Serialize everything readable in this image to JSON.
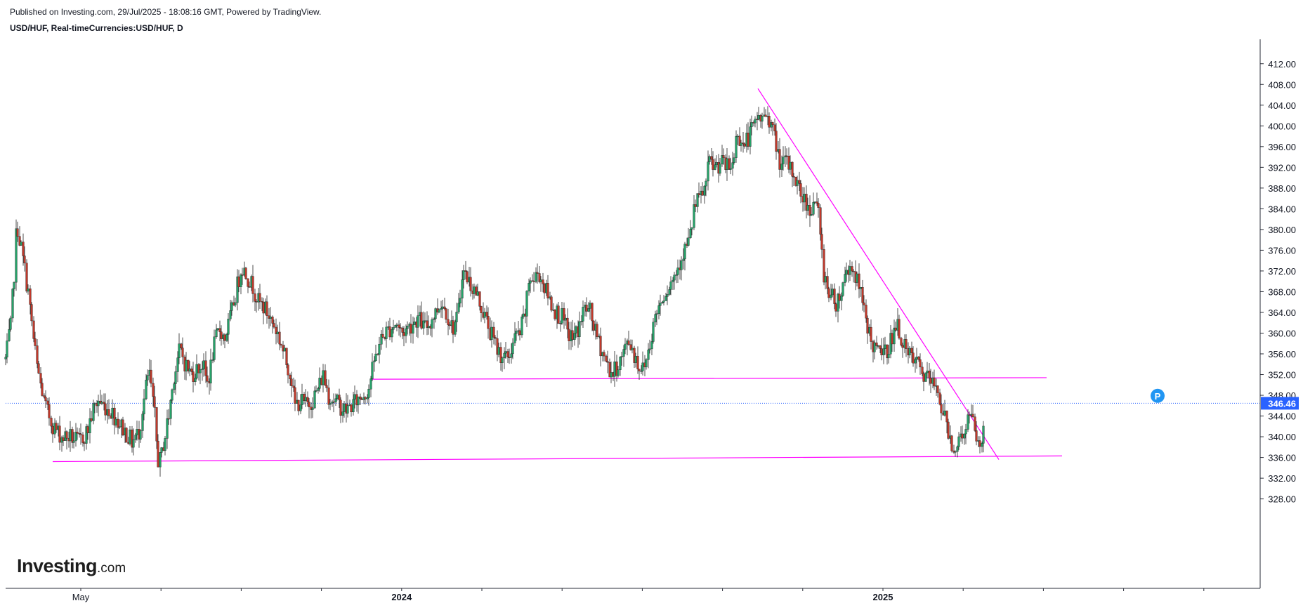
{
  "header": {
    "published": "Published on Investing.com, 29/Jul/2025 - 18:08:16 GMT, Powered by TradingView.",
    "symbol": "USD/HUF, Real-timeCurrencies:USD/HUF, D"
  },
  "logo": {
    "brand": "Investing",
    "suffix": ".com"
  },
  "colors": {
    "up": "#26a269",
    "down": "#c0392b",
    "trendline": "#ff00ff",
    "price_line": "#2962ff",
    "price_badge": "#2962ff",
    "marker": "#2196f3"
  },
  "chart_data": {
    "type": "candlestick",
    "symbol": "USD/HUF",
    "interval": "D",
    "ylim": [
      326,
      414
    ],
    "y_ticks": [
      "328.00",
      "332.00",
      "336.00",
      "340.00",
      "344.00",
      "348.00",
      "352.00",
      "356.00",
      "360.00",
      "364.00",
      "368.00",
      "372.00",
      "376.00",
      "380.00",
      "384.00",
      "388.00",
      "392.00",
      "396.00",
      "400.00",
      "404.00",
      "408.00",
      "412.00"
    ],
    "x_ticks": [
      {
        "label": "May",
        "bold": false
      },
      {
        "label": "",
        "bold": false
      },
      {
        "label": "",
        "bold": false
      },
      {
        "label": "",
        "bold": false
      },
      {
        "label": "2024",
        "bold": true
      },
      {
        "label": "",
        "bold": false
      },
      {
        "label": "",
        "bold": false
      },
      {
        "label": "",
        "bold": false
      },
      {
        "label": "",
        "bold": false
      },
      {
        "label": "",
        "bold": false
      },
      {
        "label": "2025",
        "bold": true
      },
      {
        "label": "",
        "bold": false
      },
      {
        "label": "",
        "bold": false
      },
      {
        "label": "",
        "bold": false
      },
      {
        "label": "",
        "bold": false
      }
    ],
    "close_path": [
      [
        0,
        355
      ],
      [
        8,
        362
      ],
      [
        16,
        381
      ],
      [
        24,
        375
      ],
      [
        32,
        368
      ],
      [
        44,
        354
      ],
      [
        56,
        346
      ],
      [
        68,
        342
      ],
      [
        80,
        340
      ],
      [
        92,
        340
      ],
      [
        104,
        339
      ],
      [
        116,
        341
      ],
      [
        124,
        345
      ],
      [
        132,
        347
      ],
      [
        140,
        346
      ],
      [
        150,
        345
      ],
      [
        160,
        343
      ],
      [
        170,
        341
      ],
      [
        180,
        339
      ],
      [
        190,
        341
      ],
      [
        198,
        348
      ],
      [
        204,
        353
      ],
      [
        212,
        344
      ],
      [
        218,
        334
      ],
      [
        224,
        338
      ],
      [
        232,
        344
      ],
      [
        240,
        352
      ],
      [
        248,
        357
      ],
      [
        256,
        354
      ],
      [
        264,
        352
      ],
      [
        272,
        353
      ],
      [
        280,
        354
      ],
      [
        288,
        350
      ],
      [
        296,
        357
      ],
      [
        304,
        361
      ],
      [
        312,
        359
      ],
      [
        320,
        363
      ],
      [
        328,
        368
      ],
      [
        336,
        373
      ],
      [
        344,
        371
      ],
      [
        352,
        369
      ],
      [
        360,
        366
      ],
      [
        368,
        365
      ],
      [
        376,
        363
      ],
      [
        384,
        361
      ],
      [
        392,
        358
      ],
      [
        398,
        355
      ],
      [
        406,
        352
      ],
      [
        412,
        346
      ],
      [
        420,
        347
      ],
      [
        428,
        346
      ],
      [
        436,
        347
      ],
      [
        444,
        349
      ],
      [
        452,
        352
      ],
      [
        460,
        348
      ],
      [
        468,
        347
      ],
      [
        476,
        346
      ],
      [
        484,
        345
      ],
      [
        492,
        346
      ],
      [
        500,
        347
      ],
      [
        508,
        348
      ],
      [
        516,
        349
      ],
      [
        524,
        354
      ],
      [
        532,
        358
      ],
      [
        540,
        360
      ],
      [
        548,
        361
      ],
      [
        556,
        362
      ],
      [
        564,
        360
      ],
      [
        572,
        361
      ],
      [
        580,
        362
      ],
      [
        588,
        363
      ],
      [
        596,
        361
      ],
      [
        604,
        362
      ],
      [
        612,
        364
      ],
      [
        620,
        366
      ],
      [
        628,
        364
      ],
      [
        636,
        361
      ],
      [
        644,
        363
      ],
      [
        650,
        372
      ],
      [
        656,
        371
      ],
      [
        664,
        369
      ],
      [
        672,
        367
      ],
      [
        680,
        364
      ],
      [
        688,
        361
      ],
      [
        696,
        358
      ],
      [
        704,
        356
      ],
      [
        712,
        355
      ],
      [
        718,
        356
      ],
      [
        724,
        359
      ],
      [
        732,
        360
      ],
      [
        740,
        364
      ],
      [
        746,
        371
      ],
      [
        752,
        370
      ],
      [
        758,
        372
      ],
      [
        764,
        370
      ],
      [
        770,
        368
      ],
      [
        776,
        366
      ],
      [
        784,
        364
      ],
      [
        792,
        363
      ],
      [
        800,
        360
      ],
      [
        808,
        359
      ],
      [
        816,
        361
      ],
      [
        824,
        365
      ],
      [
        832,
        364
      ],
      [
        840,
        360
      ],
      [
        848,
        357
      ],
      [
        856,
        354
      ],
      [
        864,
        352
      ],
      [
        872,
        354
      ],
      [
        880,
        356
      ],
      [
        886,
        359
      ],
      [
        892,
        357
      ],
      [
        900,
        354
      ],
      [
        908,
        353
      ],
      [
        914,
        356
      ],
      [
        920,
        360
      ],
      [
        926,
        364
      ],
      [
        932,
        366
      ],
      [
        938,
        368
      ],
      [
        944,
        369
      ],
      [
        952,
        371
      ],
      [
        960,
        374
      ],
      [
        966,
        376
      ],
      [
        974,
        378
      ],
      [
        980,
        384
      ],
      [
        988,
        386
      ],
      [
        996,
        388
      ],
      [
        1002,
        393
      ],
      [
        1010,
        392
      ],
      [
        1018,
        393
      ],
      [
        1026,
        392
      ],
      [
        1034,
        392
      ],
      [
        1042,
        399
      ],
      [
        1050,
        396
      ],
      [
        1058,
        398
      ],
      [
        1066,
        400
      ],
      [
        1072,
        402
      ],
      [
        1078,
        401
      ],
      [
        1084,
        403
      ],
      [
        1090,
        400
      ],
      [
        1096,
        397
      ],
      [
        1104,
        392
      ],
      [
        1110,
        393
      ],
      [
        1116,
        392
      ],
      [
        1124,
        390
      ],
      [
        1132,
        387
      ],
      [
        1140,
        385
      ],
      [
        1146,
        384
      ],
      [
        1152,
        386
      ],
      [
        1158,
        382
      ],
      [
        1164,
        372
      ],
      [
        1170,
        369
      ],
      [
        1176,
        367
      ],
      [
        1182,
        366
      ],
      [
        1190,
        368
      ],
      [
        1196,
        372
      ],
      [
        1204,
        373
      ],
      [
        1210,
        371
      ],
      [
        1216,
        368
      ],
      [
        1222,
        364
      ],
      [
        1228,
        361
      ],
      [
        1234,
        358
      ],
      [
        1240,
        356
      ],
      [
        1246,
        357
      ],
      [
        1252,
        356
      ],
      [
        1258,
        358
      ],
      [
        1264,
        360
      ],
      [
        1270,
        361
      ],
      [
        1276,
        359
      ],
      [
        1282,
        356
      ],
      [
        1290,
        355
      ],
      [
        1298,
        354
      ],
      [
        1306,
        352
      ],
      [
        1314,
        351
      ],
      [
        1320,
        350
      ],
      [
        1326,
        350
      ],
      [
        1332,
        346
      ],
      [
        1338,
        343
      ],
      [
        1344,
        340
      ],
      [
        1350,
        338
      ],
      [
        1356,
        339
      ],
      [
        1362,
        340
      ],
      [
        1368,
        343
      ],
      [
        1374,
        344
      ],
      [
        1380,
        341
      ],
      [
        1386,
        338
      ],
      [
        1390,
        339
      ],
      [
        1394,
        346.46
      ]
    ],
    "trendlines": [
      {
        "name": "lower-support",
        "points": [
          [
            75,
            335.2
          ],
          [
            1512,
            336.3
          ]
        ]
      },
      {
        "name": "middle-support",
        "points": [
          [
            528,
            351.1
          ],
          [
            1490,
            351.4
          ]
        ]
      },
      {
        "name": "descending-resistance",
        "points": [
          [
            1079,
            407.2
          ],
          [
            1422,
            335.6
          ]
        ]
      }
    ],
    "last_price": "346.46",
    "marker_label": "P"
  }
}
